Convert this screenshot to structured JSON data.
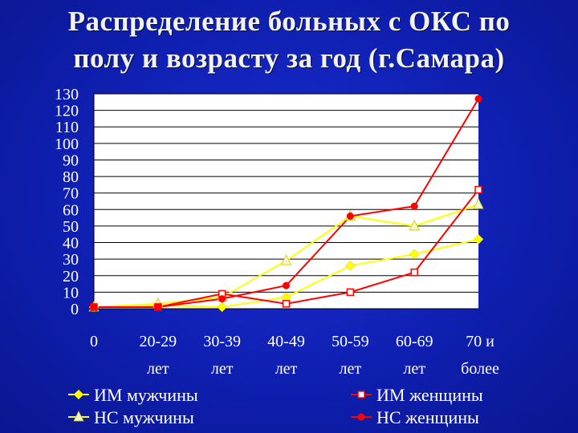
{
  "title_line1": "Распределение больных с ОКС по",
  "title_line2": "полу и возрасту за год (г.Самара)",
  "chart_data": {
    "type": "line",
    "title": "Распределение больных с ОКС по полу и возрасту за год (г.Самара)",
    "categories": [
      [
        "0"
      ],
      [
        "20-29",
        "лет"
      ],
      [
        "30-39",
        "лет"
      ],
      [
        "40-49",
        "лет"
      ],
      [
        "50-59",
        "лет"
      ],
      [
        "60-69",
        "лет"
      ],
      [
        "70 и",
        "более"
      ]
    ],
    "ylim": [
      0,
      130
    ],
    "yticks": [
      "0",
      "10",
      "20",
      "30",
      "40",
      "50",
      "60",
      "70",
      "80",
      "90",
      "100",
      "110",
      "120",
      "130"
    ],
    "series": [
      {
        "name": "ИМ мужчины",
        "color": "#ffff00",
        "marker": "diamond",
        "values": [
          1,
          2,
          1,
          7,
          26,
          33,
          42
        ]
      },
      {
        "name": "НС мужчины",
        "color": "#ffff00",
        "marker": "triangle",
        "values": [
          1,
          3,
          7,
          29,
          56,
          50,
          63
        ]
      },
      {
        "name": "ИМ женщины",
        "color": "#ff0000",
        "marker": "square",
        "values": [
          1,
          1,
          9,
          3,
          10,
          22,
          72
        ]
      },
      {
        "name": "НС женщины",
        "color": "#ff0000",
        "marker": "circle",
        "values": [
          1,
          1,
          6,
          14,
          56,
          62,
          127
        ]
      }
    ],
    "legend_position": "bottom",
    "grid": "horizontal",
    "plot_background": "#ffffff"
  }
}
